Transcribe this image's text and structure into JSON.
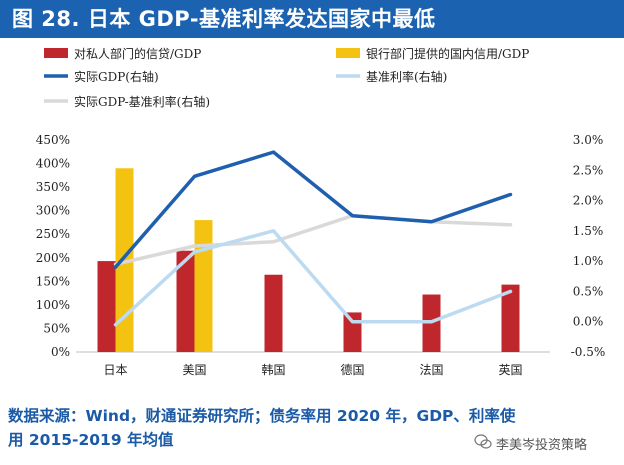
{
  "figure": {
    "title": "图 28. 日本 GDP-基准利率发达国家中最低",
    "source_line1": "数据来源：Wind，财通证券研究所；债务率用 2020 年，GDP、利率使",
    "source_line2": "用 2015-2019 年均值",
    "watermark": "李美岑投资策略"
  },
  "colors": {
    "bar_private": "#c0272d",
    "bar_bank": "#f4c312",
    "line_gdp": "#1f5fae",
    "line_rate": "#bcdaf0",
    "line_spread": "#d9d9d9",
    "title_bg": "#1b62b0"
  },
  "chart_data": {
    "type": "bar",
    "title": "日本 GDP-基准利率发达国家中最低",
    "categories": [
      "日本",
      "美国",
      "韩国",
      "德国",
      "法国",
      "英国"
    ],
    "series": [
      {
        "name": "对私人部门的信贷/GDP",
        "type": "bar",
        "axis": "left",
        "values": [
          193,
          215,
          164,
          84,
          122,
          143
        ]
      },
      {
        "name": "银行部门提供的国内信用/GDP",
        "type": "bar",
        "axis": "left",
        "values": [
          390,
          280,
          null,
          null,
          null,
          null
        ]
      },
      {
        "name": "实际GDP(右轴)",
        "type": "line",
        "axis": "right",
        "values": [
          0.9,
          2.4,
          2.8,
          1.75,
          1.65,
          2.1
        ]
      },
      {
        "name": "基准利率(右轴)",
        "type": "line",
        "axis": "right",
        "values": [
          -0.05,
          1.15,
          1.5,
          0.0,
          0.0,
          0.5
        ]
      },
      {
        "name": "实际GDP-基准利率(右轴)",
        "type": "line",
        "axis": "right",
        "values": [
          0.95,
          1.25,
          1.32,
          1.75,
          1.65,
          1.6
        ]
      }
    ],
    "ylim_left": [
      0,
      450
    ],
    "ylim_right": [
      -0.5,
      3.0
    ],
    "left_ticks": [
      "0%",
      "50%",
      "100%",
      "150%",
      "200%",
      "250%",
      "300%",
      "350%",
      "400%",
      "450%"
    ],
    "right_ticks": [
      "-0.5%",
      "0.0%",
      "0.5%",
      "1.0%",
      "1.5%",
      "2.0%",
      "2.5%",
      "3.0%"
    ],
    "legend": [
      "对私人部门的信贷/GDP",
      "银行部门提供的国内信用/GDP",
      "实际GDP(右轴)",
      "基准利率(右轴)",
      "实际GDP-基准利率(右轴)"
    ],
    "legend_position": "top"
  }
}
